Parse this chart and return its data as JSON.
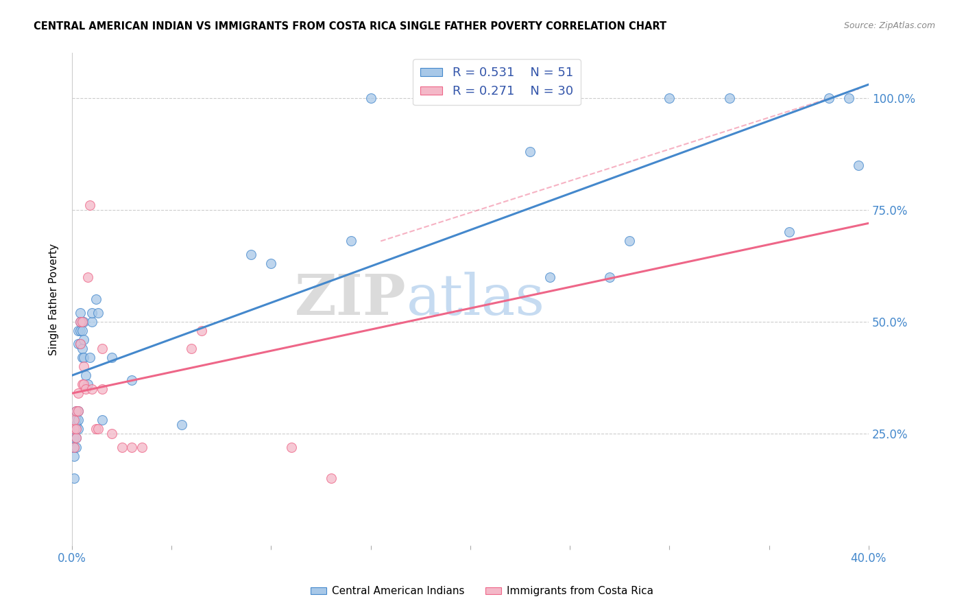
{
  "title": "CENTRAL AMERICAN INDIAN VS IMMIGRANTS FROM COSTA RICA SINGLE FATHER POVERTY CORRELATION CHART",
  "source": "Source: ZipAtlas.com",
  "ylabel": "Single Father Poverty",
  "ytick_labels": [
    "100.0%",
    "75.0%",
    "50.0%",
    "25.0%"
  ],
  "ytick_values": [
    1.0,
    0.75,
    0.5,
    0.25
  ],
  "xlim": [
    0.0,
    0.4
  ],
  "ylim": [
    0.0,
    1.1
  ],
  "watermark_zip": "ZIP",
  "watermark_atlas": "atlas",
  "legend_R1": "0.531",
  "legend_N1": "51",
  "legend_R2": "0.271",
  "legend_N2": "30",
  "color_blue": "#a8c8e8",
  "color_pink": "#f4b8c8",
  "line_blue": "#4488cc",
  "line_pink": "#ee6688",
  "blue_x": [
    0.001,
    0.001,
    0.001,
    0.001,
    0.002,
    0.002,
    0.002,
    0.002,
    0.002,
    0.002,
    0.003,
    0.003,
    0.003,
    0.003,
    0.003,
    0.004,
    0.004,
    0.004,
    0.004,
    0.005,
    0.005,
    0.005,
    0.005,
    0.006,
    0.006,
    0.006,
    0.007,
    0.008,
    0.009,
    0.01,
    0.01,
    0.012,
    0.013,
    0.015,
    0.02,
    0.03,
    0.055,
    0.09,
    0.1,
    0.14,
    0.15,
    0.23,
    0.27,
    0.3,
    0.33,
    0.36,
    0.38,
    0.39,
    0.395,
    0.28,
    0.24
  ],
  "blue_y": [
    0.15,
    0.2,
    0.22,
    0.24,
    0.22,
    0.24,
    0.26,
    0.27,
    0.28,
    0.3,
    0.26,
    0.28,
    0.3,
    0.45,
    0.48,
    0.45,
    0.48,
    0.5,
    0.52,
    0.42,
    0.44,
    0.48,
    0.5,
    0.42,
    0.46,
    0.5,
    0.38,
    0.36,
    0.42,
    0.5,
    0.52,
    0.55,
    0.52,
    0.28,
    0.42,
    0.37,
    0.27,
    0.65,
    0.63,
    0.68,
    1.0,
    0.88,
    0.6,
    1.0,
    1.0,
    0.7,
    1.0,
    1.0,
    0.85,
    0.68,
    0.6
  ],
  "pink_x": [
    0.001,
    0.001,
    0.001,
    0.002,
    0.002,
    0.002,
    0.003,
    0.003,
    0.004,
    0.004,
    0.005,
    0.005,
    0.006,
    0.006,
    0.007,
    0.008,
    0.009,
    0.01,
    0.012,
    0.013,
    0.015,
    0.015,
    0.02,
    0.025,
    0.03,
    0.035,
    0.06,
    0.065,
    0.11,
    0.13
  ],
  "pink_y": [
    0.22,
    0.26,
    0.28,
    0.24,
    0.26,
    0.3,
    0.3,
    0.34,
    0.45,
    0.5,
    0.36,
    0.5,
    0.36,
    0.4,
    0.35,
    0.6,
    0.76,
    0.35,
    0.26,
    0.26,
    0.35,
    0.44,
    0.25,
    0.22,
    0.22,
    0.22,
    0.44,
    0.48,
    0.22,
    0.15
  ],
  "blue_line_x": [
    0.0,
    0.4
  ],
  "blue_line_y": [
    0.38,
    1.03
  ],
  "pink_line_x": [
    0.0,
    0.4
  ],
  "pink_line_y": [
    0.34,
    0.72
  ],
  "dashed_line_x": [
    0.155,
    0.395
  ],
  "dashed_line_y": [
    0.68,
    1.02
  ]
}
